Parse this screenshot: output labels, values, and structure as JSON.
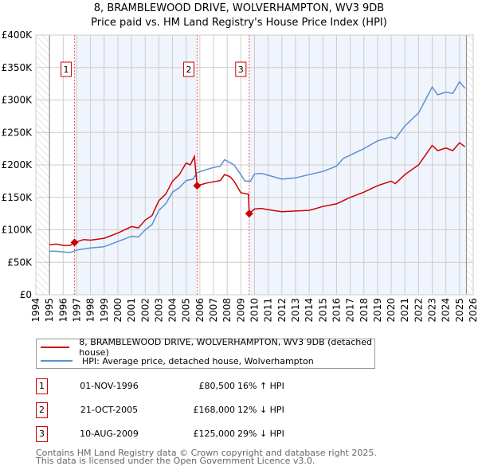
{
  "title_line1": "8, BRAMBLEWOOD DRIVE, WOLVERHAMPTON, WV3 9DB",
  "title_line2": "Price paid vs. HM Land Registry's House Price Index (HPI)",
  "legend": {
    "property": "8, BRAMBLEWOOD DRIVE, WOLVERHAMPTON, WV3 9DB (detached house)",
    "hpi": "HPI: Average price, detached house, Wolverhampton"
  },
  "sales": [
    {
      "num": "1",
      "date": "01-NOV-1996",
      "price": "£80,500",
      "hpi_diff": "16% ↑ HPI",
      "x": 1996.83,
      "value": 80500
    },
    {
      "num": "2",
      "date": "21-OCT-2005",
      "price": "£168,000",
      "hpi_diff": "12% ↓ HPI",
      "x": 2005.8,
      "value": 168000
    },
    {
      "num": "3",
      "date": "10-AUG-2009",
      "price": "£125,000",
      "hpi_diff": "29% ↓ HPI",
      "x": 2009.61,
      "value": 125000
    }
  ],
  "footer": {
    "line1": "Contains HM Land Registry data © Crown copyright and database right 2025.",
    "line2": "This data is licensed under the Open Government Licence v3.0."
  },
  "colors": {
    "property": "#cc0000",
    "hpi": "#5b8fd0",
    "shade": "#f0f4fd"
  },
  "chart_data": {
    "type": "line",
    "title": "8, BRAMBLEWOOD DRIVE, WOLVERHAMPTON, WV3 9DB — Price paid vs. HM Land Registry's House Price Index (HPI)",
    "xlim": [
      1994,
      2026
    ],
    "ylim": [
      0,
      400000
    ],
    "xticks": [
      "1994",
      "1995",
      "1996",
      "1997",
      "1998",
      "1999",
      "2000",
      "2001",
      "2002",
      "2003",
      "2004",
      "2005",
      "2006",
      "2007",
      "2008",
      "2009",
      "2010",
      "2011",
      "2012",
      "2013",
      "2014",
      "2015",
      "2016",
      "2017",
      "2018",
      "2019",
      "2020",
      "2021",
      "2022",
      "2023",
      "2024",
      "2025",
      "2026"
    ],
    "yticks": [
      {
        "v": 0,
        "label": "£0"
      },
      {
        "v": 50000,
        "label": "£50K"
      },
      {
        "v": 100000,
        "label": "£100K"
      },
      {
        "v": 150000,
        "label": "£150K"
      },
      {
        "v": 200000,
        "label": "£200K"
      },
      {
        "v": 250000,
        "label": "£250K"
      },
      {
        "v": 300000,
        "label": "£300K"
      },
      {
        "v": 350000,
        "label": "£350K"
      },
      {
        "v": 400000,
        "label": "£400K"
      }
    ],
    "grid": true,
    "legend_position": "below",
    "series": [
      {
        "name": "8, BRAMBLEWOOD DRIVE, WOLVERHAMPTON, WV3 9DB (detached house)",
        "key": "property",
        "x": [
          1995,
          1995.5,
          1996,
          1996.5,
          1996.83,
          1997.5,
          1998,
          1999,
          2000,
          2001,
          2001.5,
          2002,
          2002.5,
          2003,
          2003.5,
          2004,
          2004.5,
          2005,
          2005.3,
          2005.6,
          2005.8,
          2006.5,
          2007,
          2007.5,
          2007.8,
          2008.2,
          2008.5,
          2009,
          2009.55,
          2009.61,
          2010,
          2010.5,
          2011,
          2012,
          2013,
          2014,
          2015,
          2016,
          2017,
          2018,
          2019,
          2020,
          2020.3,
          2021,
          2022,
          2022.5,
          2023,
          2023.4,
          2024,
          2024.5,
          2025,
          2025.4
        ],
        "y": [
          77000,
          78000,
          76000,
          76000,
          80500,
          85000,
          84000,
          87000,
          95000,
          105000,
          103000,
          115000,
          122000,
          145000,
          155000,
          175000,
          185000,
          203000,
          200000,
          213000,
          168000,
          172000,
          174000,
          176000,
          185000,
          182000,
          175000,
          157000,
          155000,
          125000,
          132000,
          133000,
          131000,
          128000,
          129000,
          130000,
          136000,
          140000,
          150000,
          158000,
          168000,
          175000,
          171000,
          185000,
          200000,
          215000,
          230000,
          222000,
          226000,
          222000,
          234000,
          228000
        ]
      },
      {
        "name": "HPI: Average price, detached house, Wolverhampton",
        "key": "hpi",
        "x": [
          1995,
          1995.5,
          1996,
          1996.5,
          1997,
          1998,
          1999,
          2000,
          2001,
          2001.5,
          2002,
          2002.5,
          2003,
          2003.5,
          2004,
          2004.5,
          2005,
          2005.5,
          2005.8,
          2006.5,
          2007,
          2007.5,
          2007.8,
          2008.5,
          2009,
          2009.3,
          2009.7,
          2010,
          2010.5,
          2011,
          2012,
          2013,
          2014,
          2015,
          2016,
          2016.5,
          2017,
          2018,
          2019,
          2020,
          2020.3,
          2021,
          2022,
          2022.5,
          2023,
          2023.4,
          2024,
          2024.5,
          2025,
          2025.4
        ],
        "y": [
          67000,
          67000,
          66000,
          65000,
          69000,
          72000,
          74000,
          82000,
          90000,
          89000,
          100000,
          108000,
          130000,
          140000,
          158000,
          165000,
          176000,
          178000,
          188000,
          193000,
          196000,
          198000,
          208000,
          200000,
          185000,
          175000,
          175000,
          186000,
          187000,
          184000,
          178000,
          180000,
          185000,
          190000,
          198000,
          210000,
          215000,
          225000,
          237000,
          243000,
          240000,
          260000,
          280000,
          300000,
          320000,
          308000,
          312000,
          310000,
          328000,
          318000
        ]
      }
    ]
  }
}
